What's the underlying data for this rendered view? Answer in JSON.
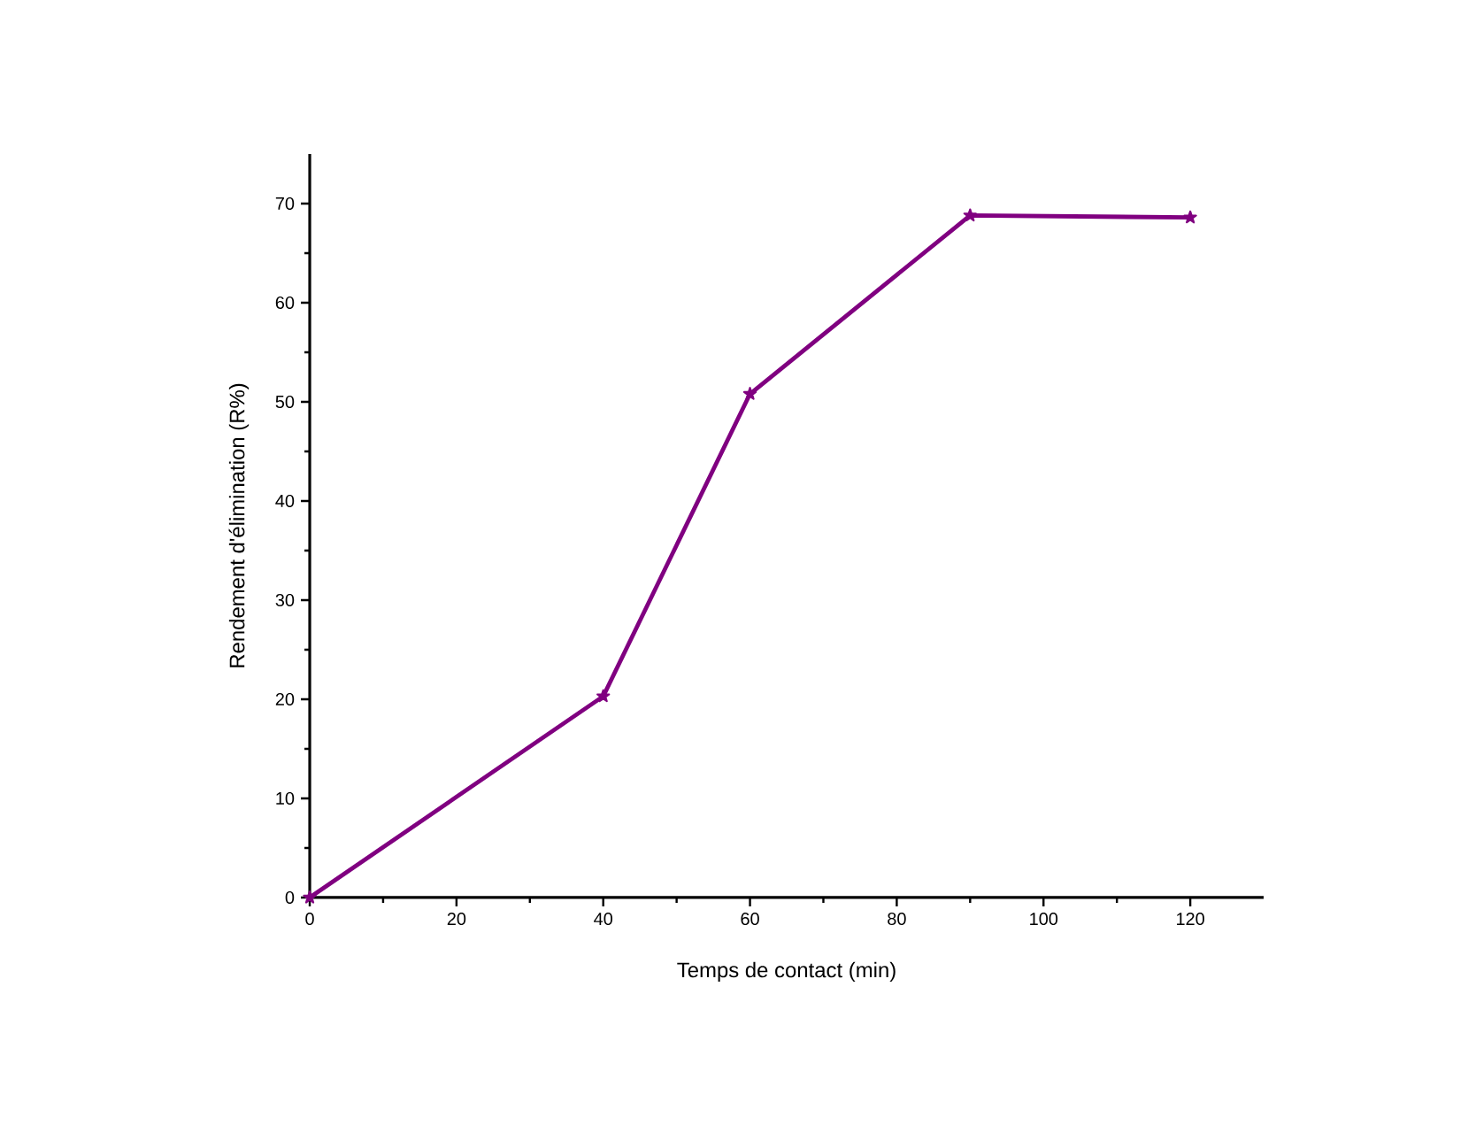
{
  "chart_data": {
    "type": "line",
    "xlabel": "Temps de contact (min)",
    "ylabel": "Rendement d'élimination (R%)",
    "x": [
      0,
      40,
      60,
      90,
      120
    ],
    "series": [
      {
        "color": "#800080",
        "values": [
          0,
          20.3,
          50.8,
          68.8,
          68.6
        ]
      }
    ],
    "xlim": [
      0,
      130
    ],
    "ylim": [
      0,
      75
    ],
    "xticks": [
      0,
      20,
      40,
      60,
      80,
      100,
      120
    ],
    "yticks": [
      0,
      10,
      20,
      30,
      40,
      50,
      60,
      70
    ],
    "grid": false,
    "marker": "star",
    "line_style": "solid"
  }
}
